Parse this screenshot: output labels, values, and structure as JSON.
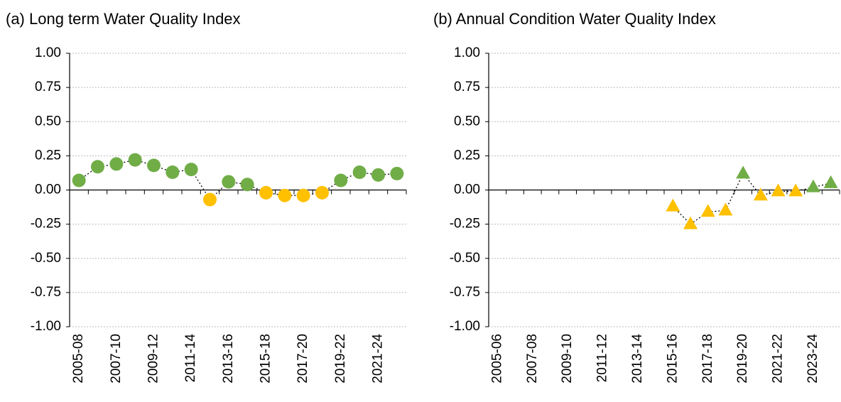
{
  "chart_data": [
    {
      "type": "line",
      "title": "(a) Long term Water Quality Index",
      "marker": "circle",
      "categories": [
        "2005-08",
        null,
        "2007-10",
        null,
        "2009-12",
        null,
        "2011-14",
        null,
        "2013-16",
        null,
        "2015-18",
        null,
        "2017-20",
        null,
        "2019-22",
        null,
        "2021-24",
        null
      ],
      "series": [
        {
          "values": [
            0.07,
            0.17,
            0.19,
            0.22,
            0.18,
            0.13,
            0.15,
            -0.07,
            0.06,
            0.04,
            -0.02,
            -0.04,
            -0.04,
            -0.02,
            0.07,
            0.13,
            0.11,
            0.12
          ],
          "point_colors": [
            "#70ad47",
            "#70ad47",
            "#70ad47",
            "#70ad47",
            "#70ad47",
            "#70ad47",
            "#70ad47",
            "#ffc000",
            "#70ad47",
            "#70ad47",
            "#ffc000",
            "#ffc000",
            "#ffc000",
            "#ffc000",
            "#70ad47",
            "#70ad47",
            "#70ad47",
            "#70ad47"
          ]
        }
      ],
      "ylim": [
        -1,
        1
      ],
      "yticks": [
        {
          "value": 1,
          "label": "1.00"
        },
        {
          "value": 0.75,
          "label": "0.75"
        },
        {
          "value": 0.5,
          "label": "0.50"
        },
        {
          "value": 0.25,
          "label": "0.25"
        },
        {
          "value": 0,
          "label": "0.00"
        },
        {
          "value": -0.25,
          "label": "-0.25"
        },
        {
          "value": -0.5,
          "label": "-0.50"
        },
        {
          "value": -0.75,
          "label": "-0.75"
        },
        {
          "value": -1,
          "label": "-1.00"
        }
      ],
      "grid": true
    },
    {
      "type": "line",
      "title": "(b) Annual Condition Water Quality Index",
      "marker": "triangle",
      "categories": [
        "2005-06",
        null,
        "2007-08",
        null,
        "2009-10",
        null,
        "2011-12",
        null,
        "2013-14",
        null,
        "2015-16",
        null,
        "2017-18",
        null,
        "2019-20",
        null,
        "2021-22",
        null,
        "2023-24",
        null
      ],
      "series": [
        {
          "values": [
            null,
            null,
            null,
            null,
            null,
            null,
            null,
            null,
            null,
            null,
            -0.12,
            -0.25,
            -0.16,
            -0.15,
            0.12,
            -0.04,
            -0.01,
            -0.01,
            0.02,
            0.05
          ],
          "point_colors": [
            null,
            null,
            null,
            null,
            null,
            null,
            null,
            null,
            null,
            null,
            "#ffc000",
            "#ffc000",
            "#ffc000",
            "#ffc000",
            "#70ad47",
            "#ffc000",
            "#ffc000",
            "#ffc000",
            "#70ad47",
            "#70ad47"
          ]
        }
      ],
      "ylim": [
        -1,
        1
      ],
      "yticks": [
        {
          "value": 1,
          "label": "1.00"
        },
        {
          "value": 0.75,
          "label": "0.75"
        },
        {
          "value": 0.5,
          "label": "0.50"
        },
        {
          "value": 0.25,
          "label": "0.25"
        },
        {
          "value": 0,
          "label": "0.00"
        },
        {
          "value": -0.25,
          "label": "-0.25"
        },
        {
          "value": -0.5,
          "label": "-0.50"
        },
        {
          "value": -0.75,
          "label": "-0.75"
        },
        {
          "value": -1,
          "label": "-1.00"
        }
      ],
      "grid": true
    }
  ]
}
